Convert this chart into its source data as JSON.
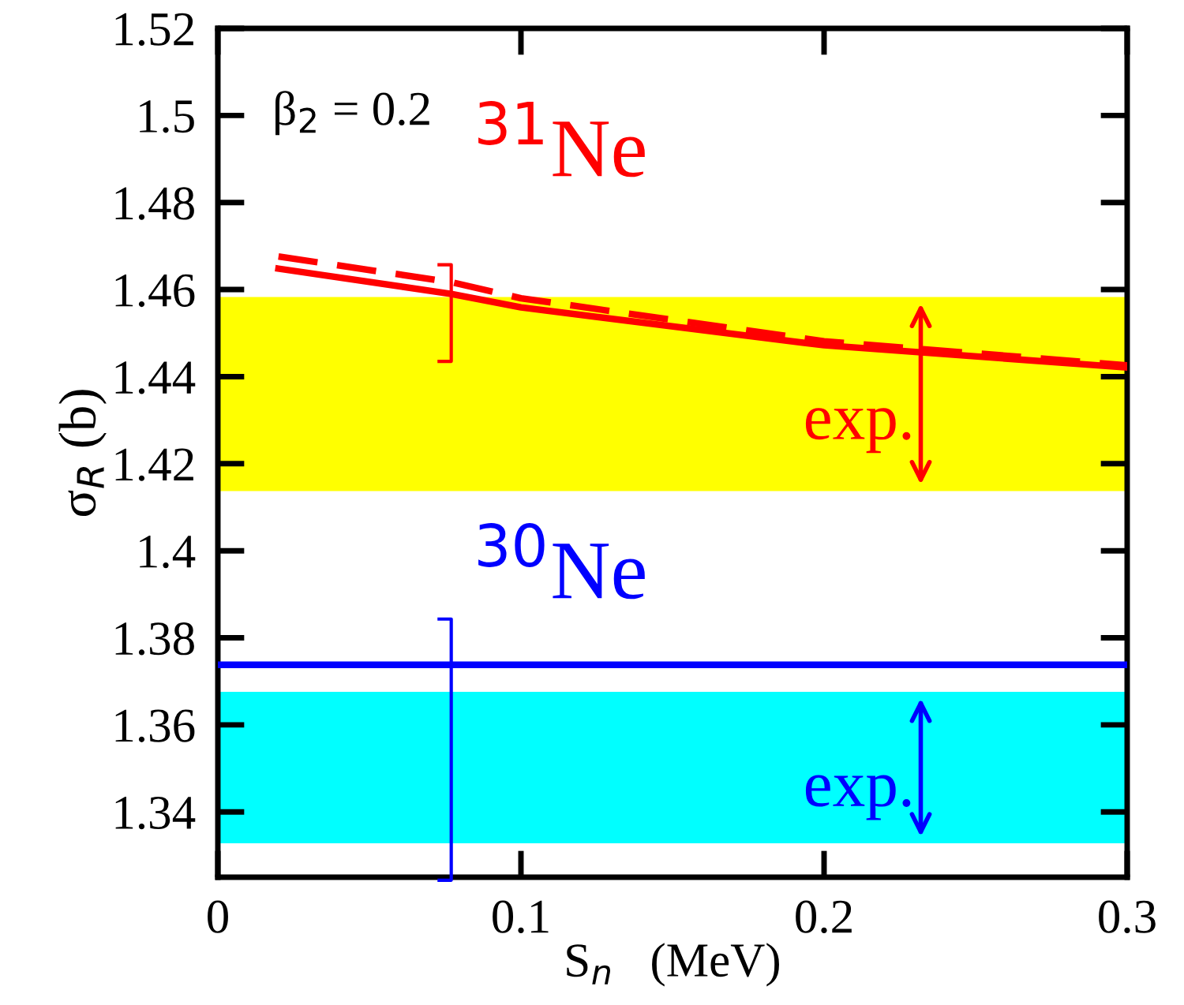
{
  "chart_data": {
    "type": "line",
    "xlabel": "S$_{n}$   (MeV)",
    "ylabel": "σ$_{R}$ (b)",
    "xlim": [
      0,
      0.3
    ],
    "xticks": [
      0,
      0.1,
      0.2,
      0.3
    ],
    "ylim": [
      1.325,
      1.52
    ],
    "yticks": [
      1.34,
      1.36,
      1.38,
      1.4,
      1.42,
      1.44,
      1.46,
      1.48,
      1.5,
      1.52
    ],
    "series": [
      {
        "color": "#ff0000",
        "line_style": "solid",
        "x": [
          0.02,
          0.077,
          0.1,
          0.2,
          0.3
        ],
        "values": [
          1.4648,
          1.459,
          1.4559,
          1.4472,
          1.4421
        ]
      },
      {
        "color": "#ff0000",
        "line_style": "dashed",
        "x": [
          0.02,
          0.077,
          0.1,
          0.2,
          0.3
        ],
        "values": [
          1.4676,
          1.4617,
          1.458,
          1.4481,
          1.4426
        ]
      },
      {
        "color": "#0000ff",
        "line_style": "solid",
        "x": [
          0,
          0.3
        ],
        "values": [
          1.3738,
          1.3738
        ]
      }
    ],
    "bands": [
      {
        "axis": "y",
        "from": 1.4137,
        "to": 1.4583,
        "label": "exp.",
        "color": "#ffff00"
      },
      {
        "axis": "y",
        "from": 1.3328,
        "to": 1.3676,
        "label": "exp.",
        "color": "#00ffff"
      }
    ],
    "annotations": [
      "β$_{2}$ = 0.2",
      {
        "text": "$^{31}$Ne",
        "x": 0.077,
        "y": 1.4617
      },
      {
        "text": "$^{30}$Ne",
        "x": 0.077,
        "y": 1.3738
      }
    ],
    "grid": false
  }
}
